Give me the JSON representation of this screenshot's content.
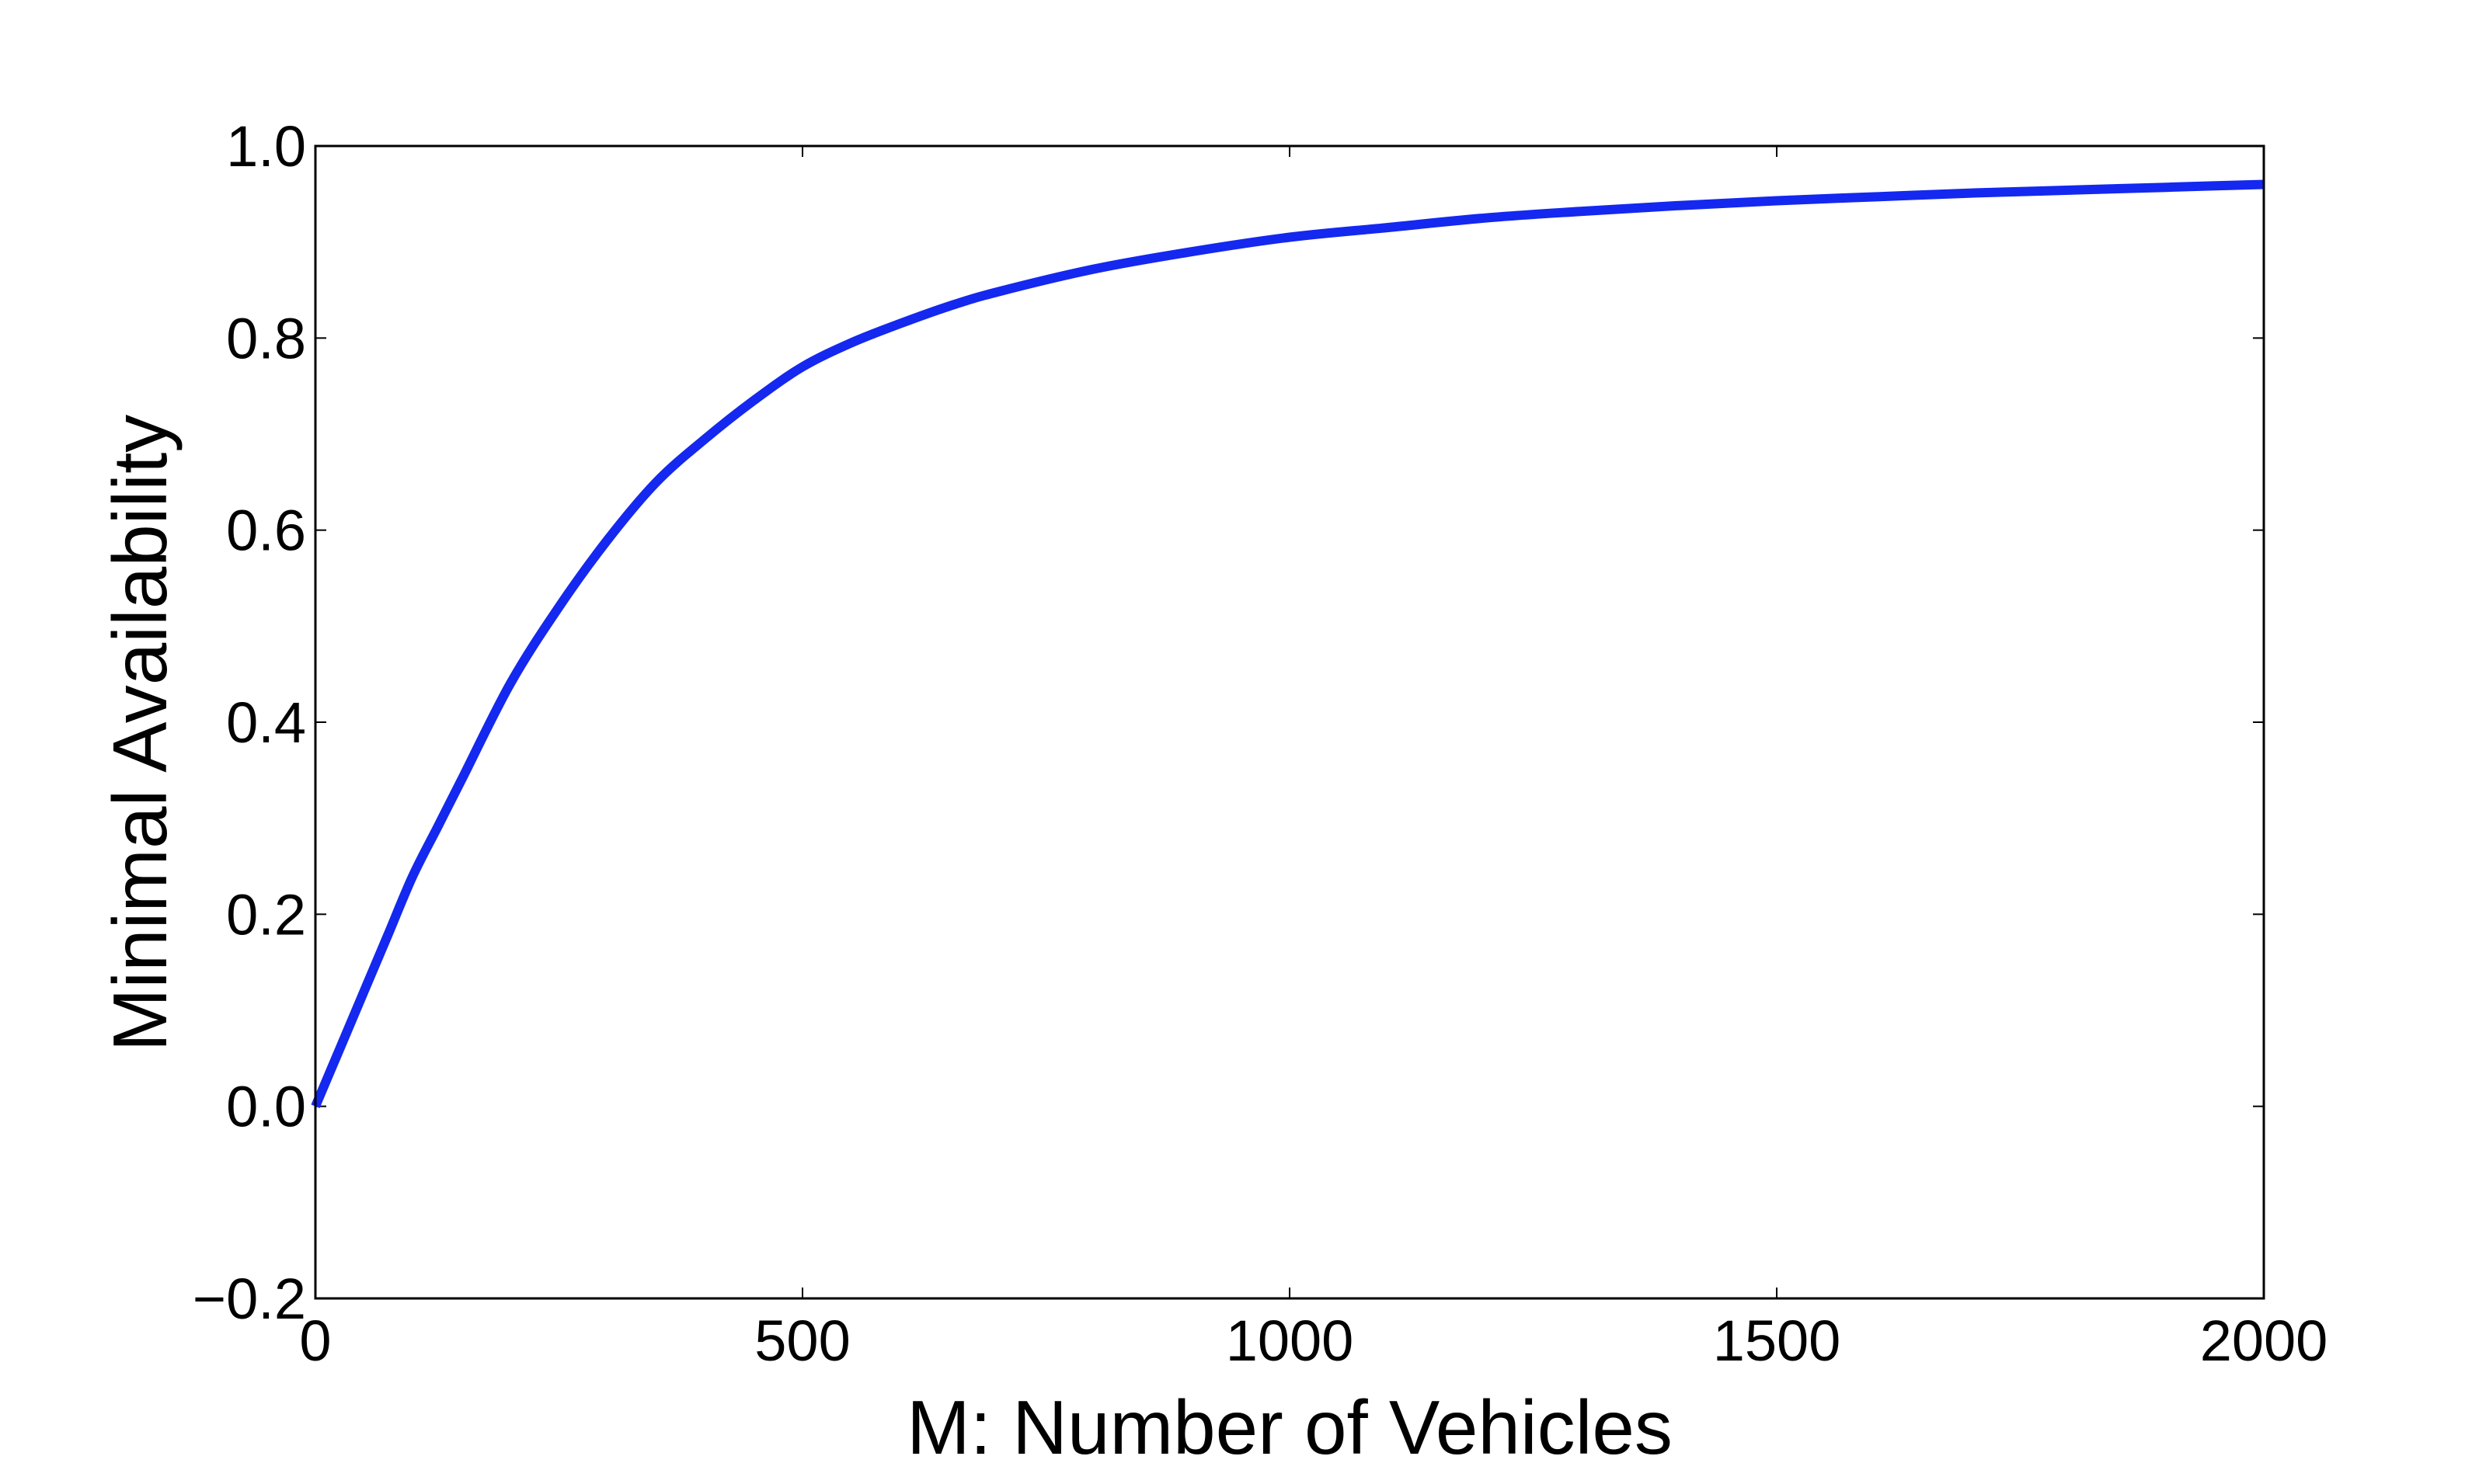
{
  "chart_data": {
    "type": "line",
    "title": "",
    "xlabel": "M: Number of Vehicles",
    "ylabel": "Minimal Availability",
    "xlim": [
      0,
      2000
    ],
    "ylim": [
      -0.2,
      1.0
    ],
    "x_ticks": [
      0,
      500,
      1000,
      1500,
      2000
    ],
    "x_tick_labels": [
      "0",
      "500",
      "1000",
      "1500",
      "2000"
    ],
    "y_ticks": [
      -0.2,
      0.0,
      0.2,
      0.4,
      0.6,
      0.8,
      1.0
    ],
    "y_tick_labels": [
      "−0.2",
      "0.0",
      "0.2",
      "0.4",
      "0.6",
      "0.8",
      "1.0"
    ],
    "grid": false,
    "legend": "none",
    "series": [
      {
        "color": "#1428f0",
        "x": [
          0,
          25,
          50,
          75,
          100,
          125,
          150,
          200,
          250,
          300,
          350,
          400,
          450,
          500,
          550,
          600,
          650,
          700,
          800,
          900,
          1000,
          1100,
          1200,
          1300,
          1400,
          1500,
          1600,
          1700,
          1800,
          1900,
          2000
        ],
        "y": [
          0.0,
          0.06,
          0.12,
          0.18,
          0.24,
          0.29,
          0.34,
          0.44,
          0.52,
          0.59,
          0.65,
          0.695,
          0.735,
          0.77,
          0.795,
          0.815,
          0.833,
          0.848,
          0.872,
          0.89,
          0.905,
          0.915,
          0.925,
          0.932,
          0.938,
          0.943,
          0.947,
          0.951,
          0.954,
          0.957,
          0.96
        ]
      }
    ]
  }
}
